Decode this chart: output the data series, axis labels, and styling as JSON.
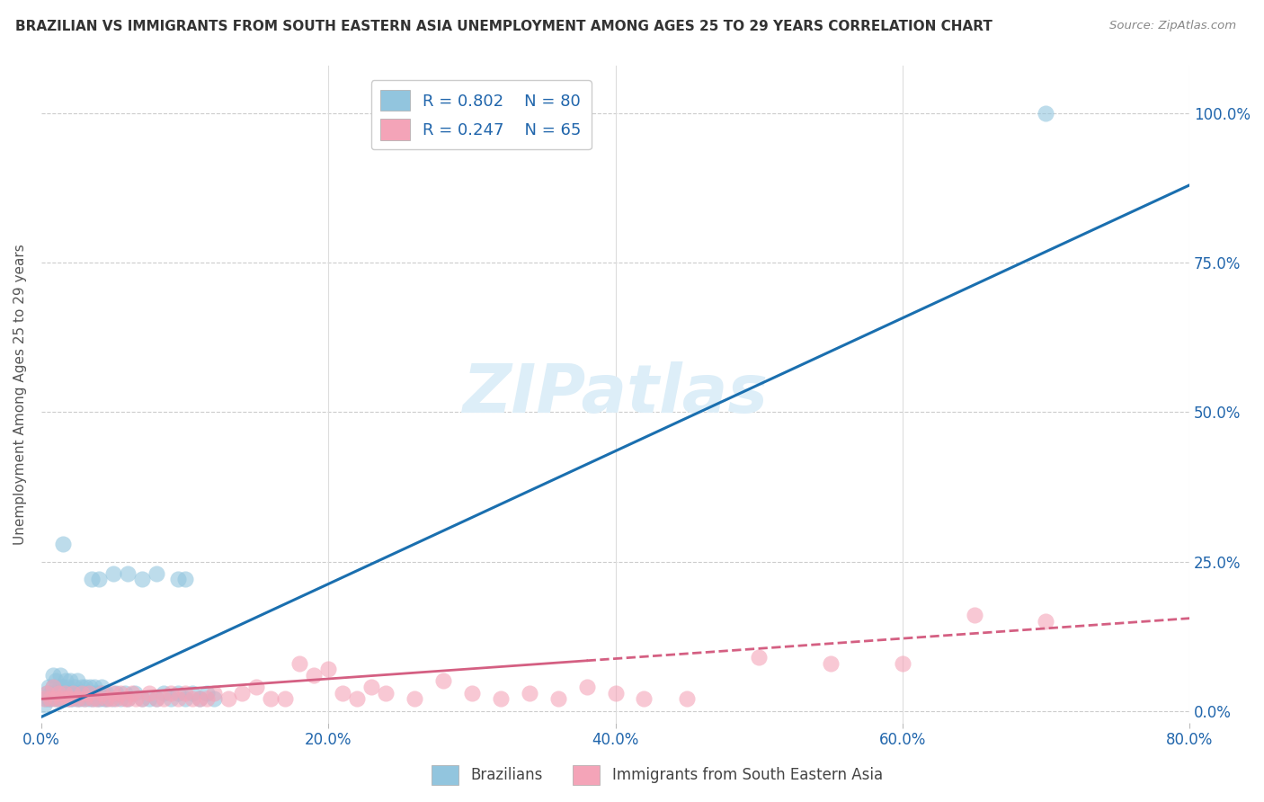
{
  "title": "BRAZILIAN VS IMMIGRANTS FROM SOUTH EASTERN ASIA UNEMPLOYMENT AMONG AGES 25 TO 29 YEARS CORRELATION CHART",
  "source": "Source: ZipAtlas.com",
  "ylabel_label": "Unemployment Among Ages 25 to 29 years",
  "legend_label1": "Brazilians",
  "legend_label2": "Immigrants from South Eastern Asia",
  "R1": "0.802",
  "N1": "80",
  "R2": "0.247",
  "N2": "65",
  "blue_color": "#92c5de",
  "pink_color": "#f4a4b8",
  "blue_line_color": "#1a6faf",
  "pink_line_color": "#d45f82",
  "blue_text_color": "#2166ac",
  "watermark_color": "#ddeef8",
  "title_color": "#333333",
  "source_color": "#888888",
  "background_color": "#ffffff",
  "grid_color": "#cccccc",
  "xlim": [
    0.0,
    0.8
  ],
  "ylim": [
    -0.02,
    1.08
  ],
  "blue_line": {
    "x0": 0.0,
    "y0": -0.01,
    "x1": 0.8,
    "y1": 0.88
  },
  "pink_line": {
    "x0": 0.0,
    "y0": 0.02,
    "x1": 0.8,
    "y1": 0.155
  },
  "pink_line_dashed_start": 0.38,
  "blue_scatter_x": [
    0.002,
    0.003,
    0.004,
    0.005,
    0.005,
    0.006,
    0.007,
    0.008,
    0.008,
    0.009,
    0.01,
    0.01,
    0.011,
    0.012,
    0.013,
    0.013,
    0.014,
    0.015,
    0.015,
    0.016,
    0.017,
    0.018,
    0.018,
    0.019,
    0.02,
    0.02,
    0.021,
    0.022,
    0.023,
    0.024,
    0.025,
    0.025,
    0.026,
    0.027,
    0.028,
    0.029,
    0.03,
    0.031,
    0.032,
    0.033,
    0.034,
    0.035,
    0.036,
    0.037,
    0.038,
    0.039,
    0.04,
    0.041,
    0.042,
    0.043,
    0.044,
    0.045,
    0.046,
    0.05,
    0.052,
    0.055,
    0.058,
    0.06,
    0.065,
    0.07,
    0.075,
    0.08,
    0.085,
    0.09,
    0.095,
    0.1,
    0.105,
    0.11,
    0.115,
    0.12,
    0.035,
    0.04,
    0.05,
    0.06,
    0.07,
    0.08,
    0.095,
    0.1,
    0.7,
    0.015
  ],
  "blue_scatter_y": [
    0.01,
    0.02,
    0.03,
    0.02,
    0.04,
    0.03,
    0.02,
    0.04,
    0.06,
    0.03,
    0.02,
    0.05,
    0.03,
    0.02,
    0.04,
    0.06,
    0.03,
    0.02,
    0.04,
    0.03,
    0.05,
    0.02,
    0.04,
    0.03,
    0.02,
    0.05,
    0.03,
    0.02,
    0.04,
    0.03,
    0.02,
    0.05,
    0.03,
    0.02,
    0.04,
    0.03,
    0.02,
    0.04,
    0.03,
    0.02,
    0.04,
    0.03,
    0.02,
    0.04,
    0.03,
    0.02,
    0.03,
    0.02,
    0.04,
    0.03,
    0.02,
    0.03,
    0.02,
    0.02,
    0.03,
    0.02,
    0.03,
    0.02,
    0.03,
    0.02,
    0.02,
    0.02,
    0.03,
    0.02,
    0.03,
    0.02,
    0.03,
    0.02,
    0.03,
    0.02,
    0.22,
    0.22,
    0.23,
    0.23,
    0.22,
    0.23,
    0.22,
    0.22,
    1.0,
    0.28
  ],
  "pink_scatter_x": [
    0.002,
    0.004,
    0.006,
    0.008,
    0.01,
    0.012,
    0.014,
    0.016,
    0.018,
    0.02,
    0.022,
    0.025,
    0.028,
    0.03,
    0.033,
    0.036,
    0.039,
    0.042,
    0.045,
    0.048,
    0.05,
    0.052,
    0.055,
    0.058,
    0.06,
    0.063,
    0.066,
    0.07,
    0.075,
    0.08,
    0.085,
    0.09,
    0.095,
    0.1,
    0.105,
    0.11,
    0.115,
    0.12,
    0.13,
    0.14,
    0.15,
    0.16,
    0.17,
    0.18,
    0.19,
    0.2,
    0.21,
    0.22,
    0.23,
    0.24,
    0.26,
    0.28,
    0.3,
    0.32,
    0.34,
    0.36,
    0.38,
    0.4,
    0.42,
    0.45,
    0.5,
    0.55,
    0.6,
    0.65,
    0.7
  ],
  "pink_scatter_y": [
    0.02,
    0.03,
    0.02,
    0.04,
    0.02,
    0.03,
    0.02,
    0.03,
    0.02,
    0.02,
    0.03,
    0.02,
    0.03,
    0.02,
    0.03,
    0.02,
    0.02,
    0.03,
    0.02,
    0.02,
    0.03,
    0.02,
    0.03,
    0.02,
    0.02,
    0.03,
    0.02,
    0.02,
    0.03,
    0.02,
    0.02,
    0.03,
    0.02,
    0.03,
    0.02,
    0.02,
    0.02,
    0.03,
    0.02,
    0.03,
    0.04,
    0.02,
    0.02,
    0.08,
    0.06,
    0.07,
    0.03,
    0.02,
    0.04,
    0.03,
    0.02,
    0.05,
    0.03,
    0.02,
    0.03,
    0.02,
    0.04,
    0.03,
    0.02,
    0.02,
    0.09,
    0.08,
    0.08,
    0.16,
    0.15
  ]
}
